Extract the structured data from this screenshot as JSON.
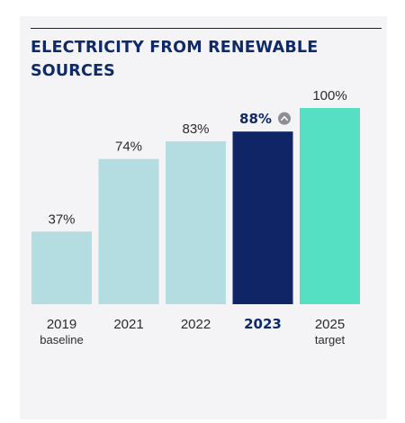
{
  "title": "ELECTRICITY FROM RENEWABLE SOURCES",
  "colors": {
    "past": "#b3dde0",
    "current": "#0f2565",
    "target": "#55dfc3",
    "title": "#0f2a6b",
    "up_icon": "#8e8e96"
  },
  "chart_data": {
    "type": "bar",
    "title": "ELECTRICITY FROM RENEWABLE SOURCES",
    "xlabel": "",
    "ylabel": "",
    "ylim": [
      0,
      100
    ],
    "grid": false,
    "categories": [
      "2019",
      "2021",
      "2022",
      "2023",
      "2025"
    ],
    "sublabels": [
      "baseline",
      "",
      "",
      "",
      "target"
    ],
    "values": [
      37,
      74,
      83,
      88,
      100
    ],
    "value_labels": [
      "37%",
      "74%",
      "83%",
      "88%",
      "100%"
    ],
    "highlight_index": 3,
    "highlight_icon": "chevron-up-circle-icon"
  }
}
